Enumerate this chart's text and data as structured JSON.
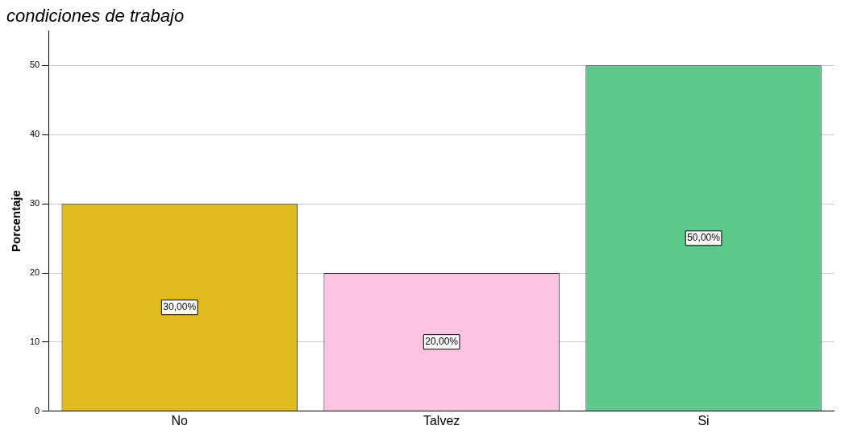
{
  "chart_data": {
    "type": "bar",
    "title": "condiciones de trabajo",
    "ylabel": "Porcentaje",
    "categories": [
      "No",
      "Talvez",
      "Si"
    ],
    "values": [
      30,
      20,
      50
    ],
    "colors": [
      "#e0bb1e",
      "#fdc4e1",
      "#5ec98a"
    ],
    "value_labels": [
      "30,00%",
      "20,00%",
      "50,00%"
    ],
    "ylim": [
      0,
      55
    ],
    "yticks": [
      0,
      10,
      20,
      30,
      40,
      50
    ],
    "grid": "y",
    "legend": false
  }
}
